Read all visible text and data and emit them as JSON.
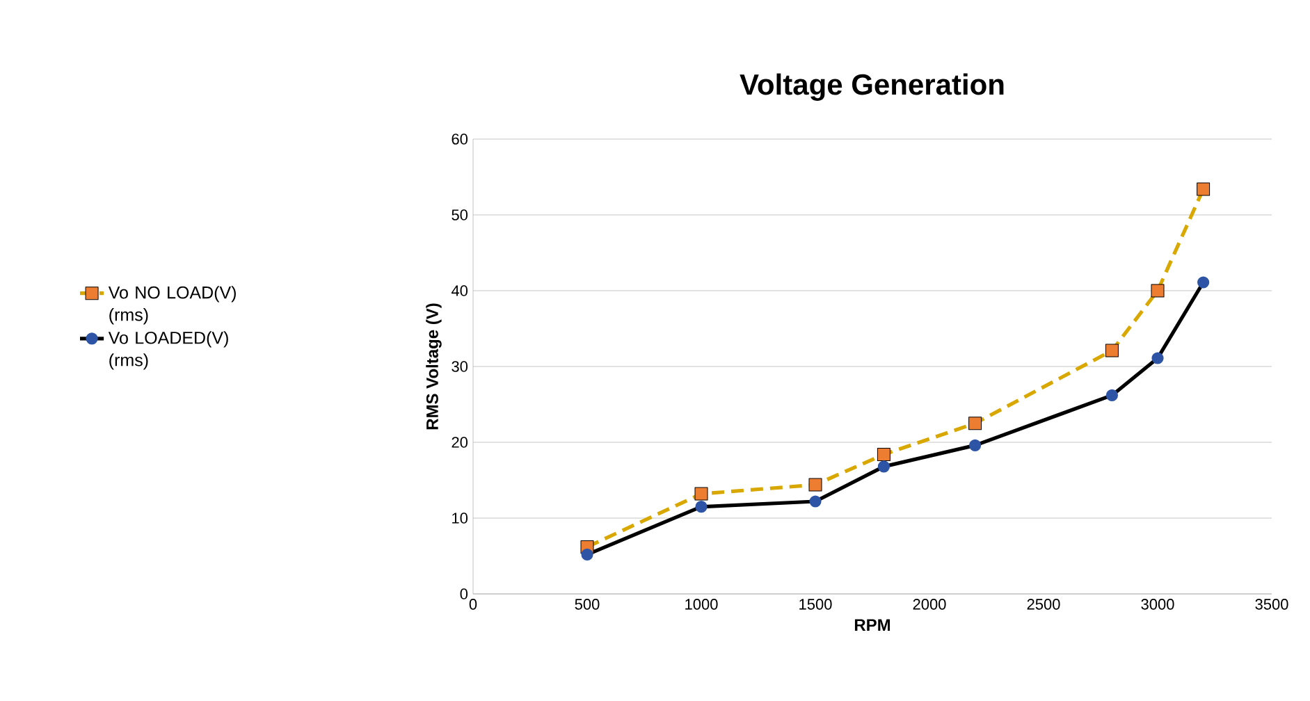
{
  "chart_data": {
    "type": "line",
    "title": "Voltage Generation",
    "xlabel": "RPM",
    "ylabel": "RMS Voltage (V)",
    "x": [
      500,
      1000,
      1500,
      1800,
      2200,
      2800,
      3000,
      3200
    ],
    "series": [
      {
        "name": "Vo NO LOAD(V) (rms)",
        "color": "#d9a800",
        "values": [
          6.2,
          13.2,
          14.4,
          18.4,
          22.5,
          32.1,
          40.0,
          53.4
        ],
        "marker": "square",
        "line_style": "dashed"
      },
      {
        "name": "Vo LOADED(V) (rms)",
        "color": "#000000",
        "values": [
          5.2,
          11.5,
          12.2,
          16.8,
          19.6,
          26.2,
          31.1,
          41.1
        ],
        "marker": "circle",
        "line_style": "solid"
      }
    ],
    "xlim": [
      0,
      3500
    ],
    "xticks": [
      0,
      500,
      1000,
      1500,
      2000,
      2500,
      3000,
      3500
    ],
    "ylim": [
      0,
      60
    ],
    "yticks": [
      0,
      10,
      20,
      30,
      40,
      50,
      60
    ],
    "grid": "y",
    "legend": "left"
  }
}
